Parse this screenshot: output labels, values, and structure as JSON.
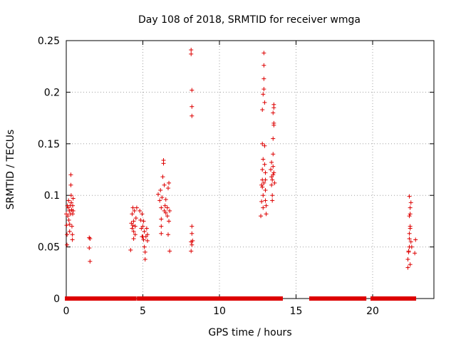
{
  "chart_data": {
    "type": "scatter",
    "title": "Day 108 of 2018, SRMTID for receiver wmga",
    "xlabel": "GPS time / hours",
    "ylabel": "SRMTID / TECUs",
    "xlim": [
      0,
      24
    ],
    "ylim": [
      0,
      0.25
    ],
    "xticks": [
      0,
      5,
      10,
      15,
      20
    ],
    "xtick_labels": [
      "0",
      "5",
      "10",
      "15",
      "20"
    ],
    "yticks": [
      0,
      0.05,
      0.1,
      0.15,
      0.2,
      0.25
    ],
    "ytick_labels": [
      "0",
      "0.05",
      "0.1",
      "0.15",
      "0.2",
      "0.25"
    ],
    "grid": true,
    "marker": "+",
    "color": "#dd0000",
    "series": [
      {
        "name": "SRMTID",
        "points": [
          [
            0.0,
            0.082
          ],
          [
            0.02,
            0.071
          ],
          [
            0.05,
            0.062
          ],
          [
            0.05,
            0.052
          ],
          [
            0.08,
            0.09
          ],
          [
            0.1,
            0.08
          ],
          [
            0.12,
            0.088
          ],
          [
            0.15,
            0.095
          ],
          [
            0.17,
            0.076
          ],
          [
            0.2,
            0.085
          ],
          [
            0.22,
            0.065
          ],
          [
            0.22,
            0.072
          ],
          [
            0.25,
            0.09
          ],
          [
            0.28,
            0.082
          ],
          [
            0.3,
            0.11
          ],
          [
            0.3,
            0.12
          ],
          [
            0.32,
            0.1
          ],
          [
            0.33,
            0.093
          ],
          [
            0.35,
            0.086
          ],
          [
            0.37,
            0.07
          ],
          [
            0.4,
            0.057
          ],
          [
            0.4,
            0.062
          ],
          [
            0.42,
            0.082
          ],
          [
            0.42,
            0.09
          ],
          [
            0.45,
            0.097
          ],
          [
            0.45,
            0.085
          ],
          [
            1.5,
            0.059
          ],
          [
            1.55,
            0.058
          ],
          [
            1.5,
            0.049
          ],
          [
            1.55,
            0.036
          ],
          [
            4.2,
            0.047
          ],
          [
            4.25,
            0.073
          ],
          [
            4.3,
            0.068
          ],
          [
            4.3,
            0.082
          ],
          [
            4.35,
            0.088
          ],
          [
            4.4,
            0.075
          ],
          [
            4.4,
            0.065
          ],
          [
            4.45,
            0.085
          ],
          [
            4.5,
            0.07
          ],
          [
            4.5,
            0.062
          ],
          [
            4.55,
            0.078
          ],
          [
            4.6,
            0.088
          ],
          [
            4.4,
            0.058
          ],
          [
            4.35,
            0.071
          ],
          [
            4.8,
            0.085
          ],
          [
            4.85,
            0.076
          ],
          [
            4.9,
            0.068
          ],
          [
            4.95,
            0.082
          ],
          [
            5.0,
            0.06
          ],
          [
            5.0,
            0.07
          ],
          [
            5.05,
            0.057
          ],
          [
            5.1,
            0.065
          ],
          [
            5.1,
            0.05
          ],
          [
            5.15,
            0.045
          ],
          [
            5.15,
            0.038
          ],
          [
            5.2,
            0.06
          ],
          [
            5.25,
            0.068
          ],
          [
            5.3,
            0.056
          ],
          [
            5.3,
            0.062
          ],
          [
            4.95,
            0.06
          ],
          [
            5.05,
            0.075
          ],
          [
            6.0,
            0.101
          ],
          [
            6.1,
            0.095
          ],
          [
            6.15,
            0.105
          ],
          [
            6.2,
            0.088
          ],
          [
            6.25,
            0.098
          ],
          [
            6.3,
            0.118
          ],
          [
            6.35,
            0.134
          ],
          [
            6.35,
            0.131
          ],
          [
            6.4,
            0.11
          ],
          [
            6.4,
            0.085
          ],
          [
            6.45,
            0.09
          ],
          [
            6.5,
            0.096
          ],
          [
            6.2,
            0.077
          ],
          [
            6.2,
            0.07
          ],
          [
            6.2,
            0.063
          ],
          [
            6.5,
            0.083
          ],
          [
            6.6,
            0.088
          ],
          [
            6.65,
            0.107
          ],
          [
            6.7,
            0.112
          ],
          [
            6.7,
            0.075
          ],
          [
            6.65,
            0.062
          ],
          [
            6.75,
            0.046
          ],
          [
            6.75,
            0.085
          ],
          [
            6.6,
            0.08
          ],
          [
            8.15,
            0.241
          ],
          [
            8.15,
            0.237
          ],
          [
            8.2,
            0.202
          ],
          [
            8.2,
            0.186
          ],
          [
            8.2,
            0.177
          ],
          [
            8.2,
            0.07
          ],
          [
            8.2,
            0.063
          ],
          [
            8.15,
            0.055
          ],
          [
            8.2,
            0.052
          ],
          [
            8.15,
            0.046
          ],
          [
            8.25,
            0.056
          ],
          [
            12.7,
            0.08
          ],
          [
            12.75,
            0.094
          ],
          [
            12.75,
            0.11
          ],
          [
            12.8,
            0.115
          ],
          [
            12.8,
            0.125
          ],
          [
            12.85,
            0.135
          ],
          [
            12.8,
            0.15
          ],
          [
            12.8,
            0.183
          ],
          [
            12.85,
            0.198
          ],
          [
            12.9,
            0.203
          ],
          [
            12.9,
            0.213
          ],
          [
            12.9,
            0.226
          ],
          [
            12.9,
            0.238
          ],
          [
            12.95,
            0.19
          ],
          [
            12.95,
            0.148
          ],
          [
            12.95,
            0.13
          ],
          [
            13.0,
            0.115
          ],
          [
            13.0,
            0.105
          ],
          [
            13.0,
            0.095
          ],
          [
            13.05,
            0.09
          ],
          [
            13.05,
            0.082
          ],
          [
            12.85,
            0.1
          ],
          [
            12.9,
            0.112
          ],
          [
            13.0,
            0.122
          ],
          [
            12.8,
            0.108
          ],
          [
            12.85,
            0.088
          ],
          [
            13.35,
            0.125
          ],
          [
            13.4,
            0.118
          ],
          [
            13.4,
            0.11
          ],
          [
            13.45,
            0.1
          ],
          [
            13.5,
            0.14
          ],
          [
            13.5,
            0.155
          ],
          [
            13.55,
            0.17
          ],
          [
            13.55,
            0.168
          ],
          [
            13.5,
            0.18
          ],
          [
            13.55,
            0.185
          ],
          [
            13.55,
            0.188
          ],
          [
            13.5,
            0.12
          ],
          [
            13.55,
            0.122
          ],
          [
            13.45,
            0.115
          ],
          [
            13.4,
            0.132
          ],
          [
            13.5,
            0.128
          ],
          [
            13.45,
            0.095
          ],
          [
            13.6,
            0.112
          ],
          [
            22.3,
            0.03
          ],
          [
            22.3,
            0.038
          ],
          [
            22.35,
            0.045
          ],
          [
            22.35,
            0.046
          ],
          [
            22.4,
            0.05
          ],
          [
            22.4,
            0.058
          ],
          [
            22.4,
            0.063
          ],
          [
            22.45,
            0.068
          ],
          [
            22.45,
            0.07
          ],
          [
            22.4,
            0.08
          ],
          [
            22.45,
            0.082
          ],
          [
            22.45,
            0.088
          ],
          [
            22.5,
            0.093
          ],
          [
            22.4,
            0.099
          ],
          [
            22.5,
            0.055
          ],
          [
            22.45,
            0.033
          ],
          [
            22.8,
            0.057
          ],
          [
            22.75,
            0.044
          ],
          [
            22.55,
            0.05
          ]
        ]
      }
    ],
    "zero_ranges": [
      [
        0.05,
        4.45
      ],
      [
        4.75,
        5.95
      ],
      [
        6.05,
        6.55
      ],
      [
        6.65,
        12.7
      ],
      [
        12.9,
        13.35
      ],
      [
        13.5,
        14.0
      ],
      [
        16.0,
        19.45
      ],
      [
        20.0,
        22.35
      ],
      [
        22.45,
        22.7
      ]
    ]
  }
}
